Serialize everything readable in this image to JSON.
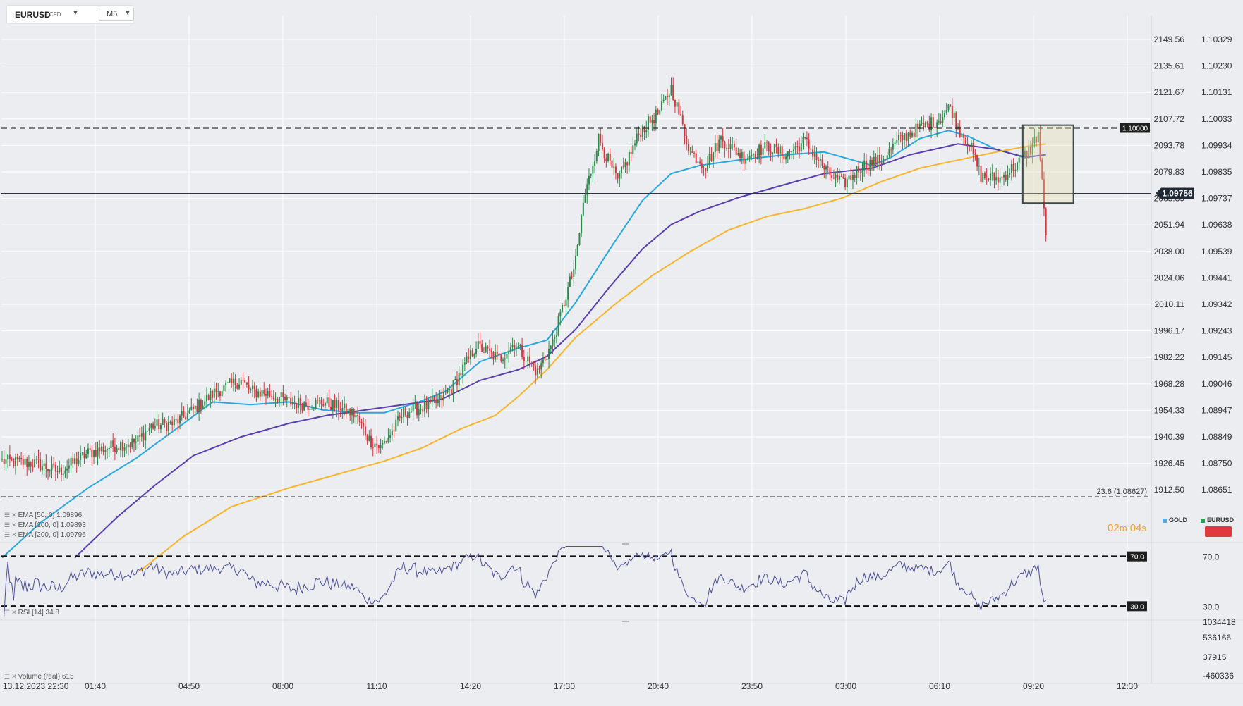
{
  "instrument": {
    "symbol": "EURUSD",
    "type": "CFD",
    "timeframe": "M5"
  },
  "chart_data": [
    {
      "type": "candlestick",
      "title": "EURUSD",
      "y_axis_right": [
        "1.10329",
        "1.10230",
        "1.10131",
        "1.10033",
        "1.09934",
        "1.09835",
        "1.09737",
        "1.09638",
        "1.09539",
        "1.09441",
        "1.09342",
        "1.09243",
        "1.09145",
        "1.09046",
        "1.08947",
        "1.08849",
        "1.08750",
        "1.08651"
      ],
      "y_axis_secondary": [
        "2149.56",
        "2135.61",
        "2121.67",
        "2107.72",
        "2093.78",
        "2079.83",
        "2065.89",
        "2051.94",
        "2038.00",
        "2024.06",
        "2010.11",
        "1996.17",
        "1982.22",
        "1968.28",
        "1954.33",
        "1940.39",
        "1926.45",
        "1912.50"
      ],
      "ylim": [
        1.086,
        1.1036
      ],
      "x_ticks": [
        "13.12.2023  22:30",
        "01:40",
        "04:50",
        "08:00",
        "11:10",
        "14:20",
        "17:30",
        "20:40",
        "23:50",
        "03:00",
        "06:10",
        "09:20",
        "12:30"
      ],
      "price_path": [
        [
          0,
          1.0876
        ],
        [
          18,
          1.0875
        ],
        [
          30,
          1.0872
        ],
        [
          45,
          1.0879
        ],
        [
          60,
          1.0882
        ],
        [
          70,
          1.0883
        ],
        [
          78,
          1.0889
        ],
        [
          90,
          1.089
        ],
        [
          100,
          1.0895
        ],
        [
          112,
          1.0902
        ],
        [
          125,
          1.0906
        ],
        [
          130,
          1.0902
        ],
        [
          140,
          1.0901
        ],
        [
          150,
          1.0898
        ],
        [
          160,
          1.0897
        ],
        [
          168,
          1.0898
        ],
        [
          176,
          1.0896
        ],
        [
          185,
          1.0893
        ],
        [
          192,
          1.0884
        ],
        [
          198,
          1.0881
        ],
        [
          205,
          1.0888
        ],
        [
          210,
          1.0894
        ],
        [
          220,
          1.0896
        ],
        [
          228,
          1.0898
        ],
        [
          236,
          1.0904
        ],
        [
          248,
          1.0919
        ],
        [
          260,
          1.0914
        ],
        [
          268,
          1.092
        ],
        [
          280,
          1.0909
        ],
        [
          288,
          1.092
        ],
        [
          300,
          1.095
        ],
        [
          304,
          1.0972
        ],
        [
          312,
          1.0996
        ],
        [
          322,
          1.098
        ],
        [
          334,
          1.0999
        ],
        [
          344,
          1.1006
        ],
        [
          350,
          1.1015
        ],
        [
          360,
          1.0991
        ],
        [
          368,
          1.0986
        ],
        [
          376,
          1.0996
        ],
        [
          388,
          1.0989
        ],
        [
          400,
          1.0993
        ],
        [
          410,
          1.099
        ],
        [
          420,
          1.0995
        ],
        [
          432,
          1.0983
        ],
        [
          440,
          1.0979
        ],
        [
          450,
          1.0986
        ],
        [
          460,
          1.0988
        ],
        [
          470,
          1.0996
        ],
        [
          480,
          1.1
        ],
        [
          490,
          1.1003
        ],
        [
          496,
          1.1008
        ],
        [
          500,
          1.1
        ],
        [
          506,
          1.0994
        ],
        [
          512,
          1.0982
        ],
        [
          522,
          1.0981
        ],
        [
          530,
          1.0986
        ],
        [
          538,
          1.0992
        ],
        [
          542,
          1.0998
        ],
        [
          546,
          1.096
        ]
      ],
      "ema_series": [
        {
          "name": "EMA [50, 0] 1.09896",
          "color": "#29a8e0",
          "points": [
            [
              0,
              1.084
            ],
            [
              20,
              1.0853
            ],
            [
              45,
              1.0866
            ],
            [
              70,
              1.0877
            ],
            [
              95,
              1.089
            ],
            [
              110,
              1.0898
            ],
            [
              130,
              1.0897
            ],
            [
              150,
              1.0898
            ],
            [
              168,
              1.0895
            ],
            [
              185,
              1.0894
            ],
            [
              200,
              1.0894
            ],
            [
              218,
              1.0898
            ],
            [
              232,
              1.0902
            ],
            [
              250,
              1.0913
            ],
            [
              270,
              1.0918
            ],
            [
              285,
              1.0921
            ],
            [
              300,
              1.0935
            ],
            [
              318,
              1.0955
            ],
            [
              335,
              1.0973
            ],
            [
              350,
              1.0983
            ],
            [
              365,
              1.0986
            ],
            [
              385,
              1.0988
            ],
            [
              410,
              1.099
            ],
            [
              430,
              1.0991
            ],
            [
              445,
              1.0988
            ],
            [
              455,
              1.0986
            ],
            [
              465,
              1.0989
            ],
            [
              480,
              1.0996
            ],
            [
              495,
              1.0999
            ],
            [
              505,
              1.0997
            ],
            [
              520,
              1.0992
            ],
            [
              535,
              1.0989
            ],
            [
              546,
              1.099
            ]
          ]
        },
        {
          "name": "EMA [100, 0] 1.09893",
          "color": "#5a3fb0",
          "points": [
            [
              38,
              1.084
            ],
            [
              60,
              1.0855
            ],
            [
              80,
              1.0867
            ],
            [
              100,
              1.0878
            ],
            [
              125,
              1.0885
            ],
            [
              150,
              1.089
            ],
            [
              170,
              1.0893
            ],
            [
              190,
              1.0895
            ],
            [
              210,
              1.0897
            ],
            [
              230,
              1.0899
            ],
            [
              250,
              1.0906
            ],
            [
              270,
              1.091
            ],
            [
              285,
              1.0915
            ],
            [
              300,
              1.0925
            ],
            [
              318,
              1.0941
            ],
            [
              335,
              1.0955
            ],
            [
              350,
              1.0964
            ],
            [
              365,
              1.0969
            ],
            [
              385,
              1.0974
            ],
            [
              410,
              1.0979
            ],
            [
              430,
              1.0983
            ],
            [
              455,
              1.0985
            ],
            [
              475,
              1.099
            ],
            [
              500,
              1.0994
            ],
            [
              520,
              1.0992
            ],
            [
              535,
              1.0989
            ],
            [
              546,
              1.099
            ]
          ]
        },
        {
          "name": "EMA [200, 0] 1.09796",
          "color": "#f7b52c",
          "points": [
            [
              72,
              1.0835
            ],
            [
              95,
              1.0848
            ],
            [
              120,
              1.0859
            ],
            [
              150,
              1.0866
            ],
            [
              180,
              1.0872
            ],
            [
              200,
              1.0876
            ],
            [
              220,
              1.0881
            ],
            [
              240,
              1.0888
            ],
            [
              258,
              1.0893
            ],
            [
              270,
              1.09
            ],
            [
              285,
              1.091
            ],
            [
              300,
              1.0922
            ],
            [
              320,
              1.0934
            ],
            [
              340,
              1.0945
            ],
            [
              360,
              1.0954
            ],
            [
              380,
              1.0962
            ],
            [
              400,
              1.0967
            ],
            [
              420,
              1.097
            ],
            [
              440,
              1.0974
            ],
            [
              460,
              1.098
            ],
            [
              480,
              1.0985
            ],
            [
              500,
              1.0988
            ],
            [
              520,
              1.0991
            ],
            [
              535,
              1.0993
            ],
            [
              546,
              1.0994
            ]
          ]
        }
      ],
      "current_price": "1.09756",
      "level_line": "1.10000",
      "fib_level": "23.6 (1.08627)"
    },
    {
      "type": "line",
      "title": "RSI [14] 34.8",
      "levels": [
        "70.0",
        "30.0"
      ],
      "y_axis": [
        "70.0",
        "30.0"
      ],
      "ylim": [
        20,
        80
      ],
      "x": [
        0,
        546
      ]
    },
    {
      "type": "bar",
      "title": "Volume  (real)  615",
      "y_axis": [
        "1034418",
        "536166",
        "37915",
        "-460336"
      ]
    }
  ],
  "indicators": {
    "ema50": "EMA [50, 0] 1.09896",
    "ema100": "EMA [100, 0] 1.09893",
    "ema200": "EMA [200, 0] 1.09796",
    "rsi": "RSI [14] 34.8",
    "volume": "Volume  (real)  615"
  },
  "countdown": {
    "minutes": "02",
    "m": "m",
    "seconds": "04",
    "s": "s"
  },
  "legend": {
    "gold": "GOLD",
    "eurusd": "EURUSD",
    "gold_color": "#5aa9e6",
    "eurusd_color": "#2a9d55"
  },
  "colors": {
    "bull": "#2a8a4a",
    "bear": "#d8343c",
    "panel_bg": "#ecedf1",
    "grid": "#ffffff"
  }
}
